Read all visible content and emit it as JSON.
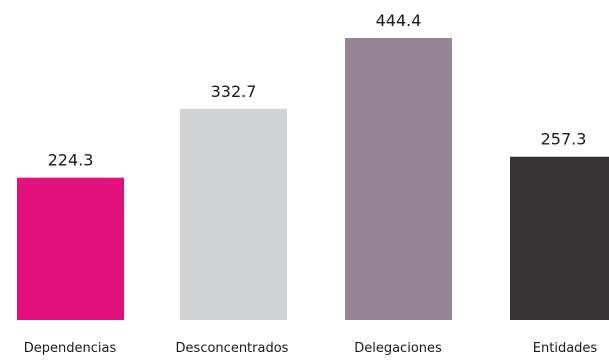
{
  "chart_data": {
    "type": "bar",
    "categories": [
      "Dependencias",
      "Desconcentrados",
      "Delegaciones",
      "Entidades"
    ],
    "values": [
      224.3,
      332.7,
      444.4,
      257.3
    ],
    "value_labels": [
      "224.3",
      "332.7",
      "444.4",
      "257.3"
    ],
    "colors": [
      "#e3117e",
      "#d2d3d5",
      "#958597",
      "#353334"
    ],
    "ylim": [
      0,
      444.4
    ],
    "grid": false,
    "legend": "none"
  }
}
